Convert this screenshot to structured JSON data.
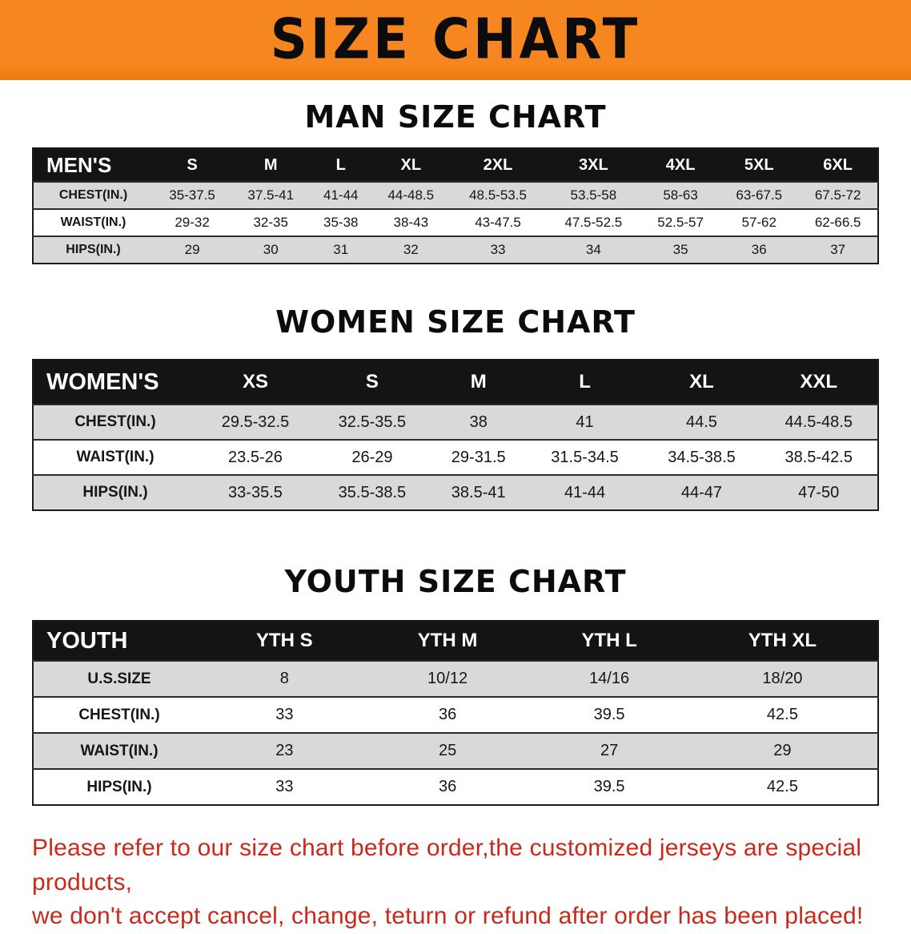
{
  "banner": {
    "title": "SIZE CHART"
  },
  "sections": {
    "men": {
      "heading": "MAN SIZE CHART",
      "corner_label": "MEN'S",
      "columns": [
        "S",
        "M",
        "L",
        "XL",
        "2XL",
        "3XL",
        "4XL",
        "5XL",
        "6XL"
      ],
      "rows": [
        {
          "label": "CHEST(IN.)",
          "values": [
            "35-37.5",
            "37.5-41",
            "41-44",
            "44-48.5",
            "48.5-53.5",
            "53.5-58",
            "58-63",
            "63-67.5",
            "67.5-72"
          ]
        },
        {
          "label": "WAIST(IN.)",
          "values": [
            "29-32",
            "32-35",
            "35-38",
            "38-43",
            "43-47.5",
            "47.5-52.5",
            "52.5-57",
            "57-62",
            "62-66.5"
          ]
        },
        {
          "label": "HIPS(IN.)",
          "values": [
            "29",
            "30",
            "31",
            "32",
            "33",
            "34",
            "35",
            "36",
            "37"
          ]
        }
      ]
    },
    "women": {
      "heading": "WOMEN SIZE CHART",
      "corner_label": "WOMEN'S",
      "columns": [
        "XS",
        "S",
        "M",
        "L",
        "XL",
        "XXL"
      ],
      "rows": [
        {
          "label": "CHEST(IN.)",
          "values": [
            "29.5-32.5",
            "32.5-35.5",
            "38",
            "41",
            "44.5",
            "44.5-48.5"
          ]
        },
        {
          "label": "WAIST(IN.)",
          "values": [
            "23.5-26",
            "26-29",
            "29-31.5",
            "31.5-34.5",
            "34.5-38.5",
            "38.5-42.5"
          ]
        },
        {
          "label": "HIPS(IN.)",
          "values": [
            "33-35.5",
            "35.5-38.5",
            "38.5-41",
            "41-44",
            "44-47",
            "47-50"
          ]
        }
      ]
    },
    "youth": {
      "heading": "YOUTH SIZE CHART",
      "corner_label": "YOUTH",
      "columns": [
        "YTH S",
        "YTH M",
        "YTH L",
        "YTH XL"
      ],
      "rows": [
        {
          "label": "U.S.SIZE",
          "values": [
            "8",
            "10/12",
            "14/16",
            "18/20"
          ]
        },
        {
          "label": "CHEST(IN.)",
          "values": [
            "33",
            "36",
            "39.5",
            "42.5"
          ]
        },
        {
          "label": "WAIST(IN.)",
          "values": [
            "23",
            "25",
            "27",
            "29"
          ]
        },
        {
          "label": "HIPS(IN.)",
          "values": [
            "33",
            "36",
            "39.5",
            "42.5"
          ]
        }
      ]
    }
  },
  "footer": {
    "line1": "Please refer to our size chart before order,the customized jerseys are special products,",
    "line2": "we don't accept cancel, change, teturn or refund after order has been placed!"
  },
  "colors": {
    "banner_orange": "#F6861F",
    "header_black": "#141414",
    "row_gray": "#d9d9d9",
    "footer_red": "#C9291B"
  }
}
